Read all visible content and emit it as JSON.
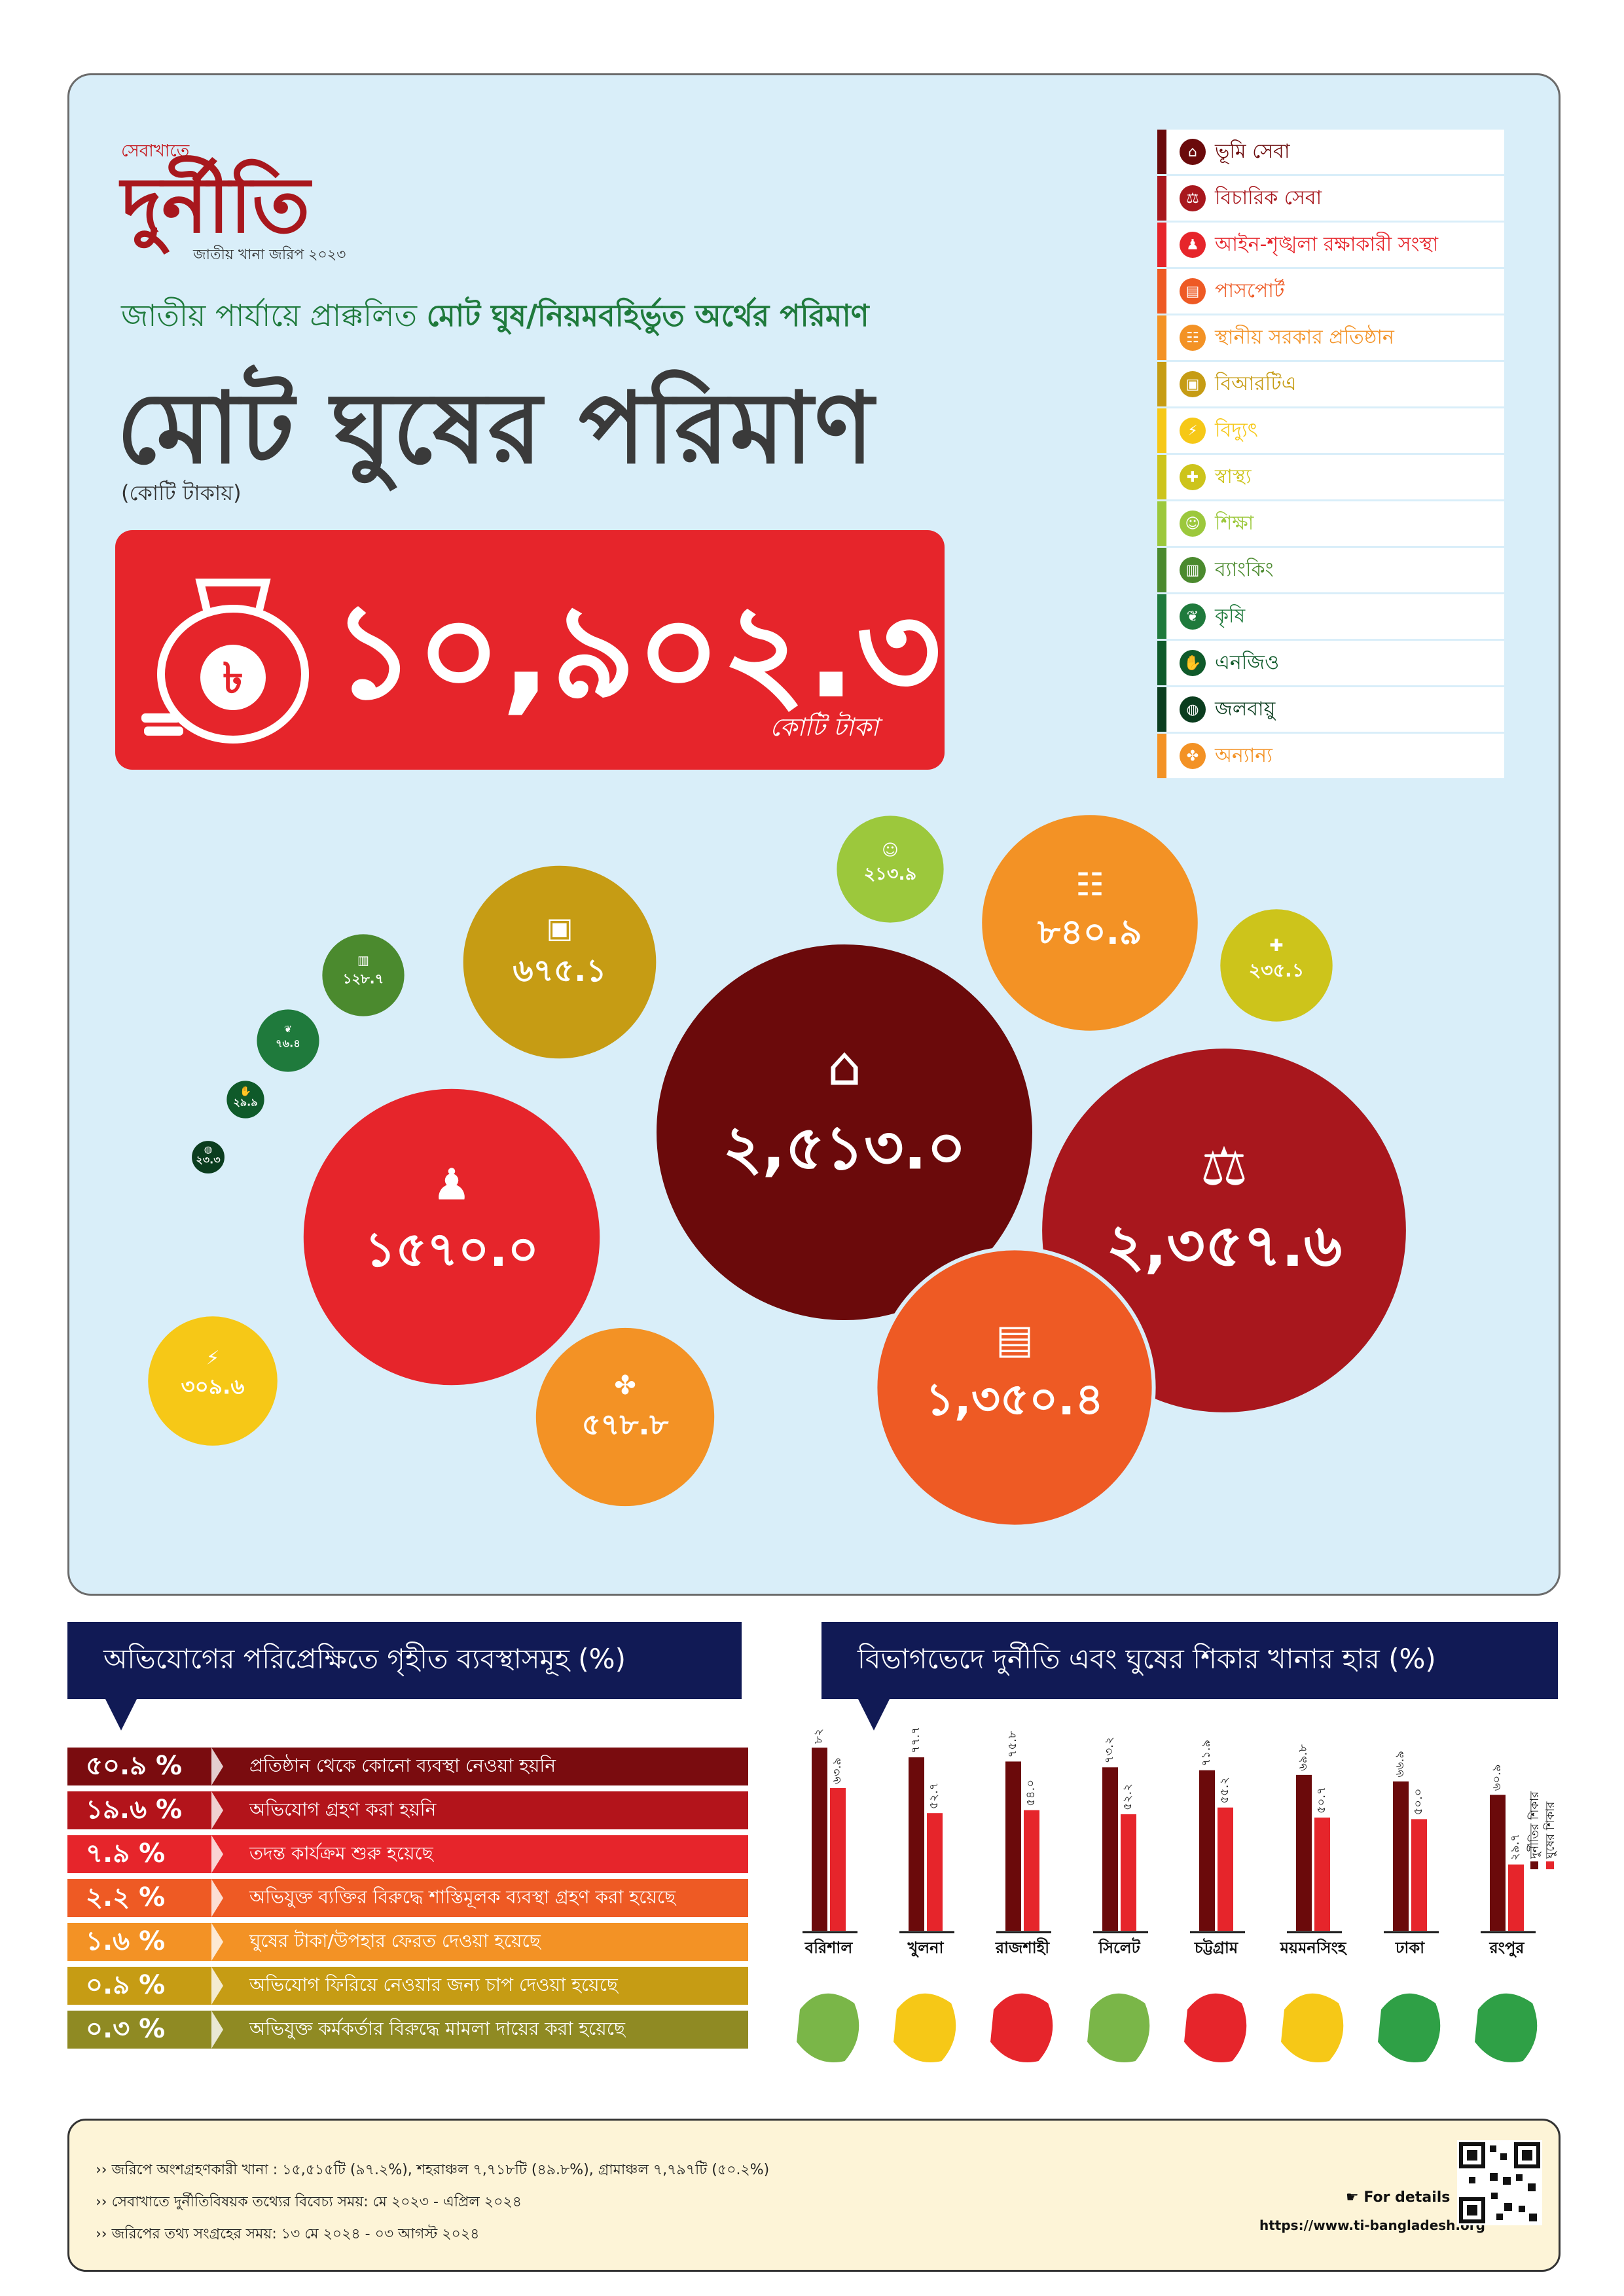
{
  "logo": {
    "top": "সেবাখাতে",
    "main": "দুর্নীতি",
    "sub": "জাতীয় খানা জরিপ ২০২৩"
  },
  "subtitle": {
    "pre": "জাতীয় পার্যায়ে প্রাক্কলিত ",
    "bold": "মোট ঘুষ/নিয়মবহির্ভুত অর্থের পরিমাণ"
  },
  "main_title": "মোট ঘুষের পরিমাণ",
  "unit": "(কোটি টাকায়)",
  "total": {
    "value": "১০,৯০২.৩",
    "unit": "কোটি টাকা",
    "icon": "taka-money-bag-icon"
  },
  "colors": {
    "panel": "#d9eef9",
    "header": "#111a55",
    "total_box": "#e6252b"
  },
  "legend": [
    {
      "label": "ভূমি সেবা",
      "color": "#6b0a0b",
      "icon": "land-icon"
    },
    {
      "label": "বিচারিক সেবা",
      "color": "#a8171d",
      "icon": "gavel-icon"
    },
    {
      "label": "আইন-শৃঙ্খলা রক্ষাকারী সংস্থা",
      "color": "#e6252b",
      "icon": "police-icon"
    },
    {
      "label": "পাসপোর্ট",
      "color": "#ee5a24",
      "icon": "passport-icon"
    },
    {
      "label": "স্থানীয় সরকার প্রতিষ্ঠান",
      "color": "#f39225",
      "icon": "meeting-icon"
    },
    {
      "label": "বিআরটিএ",
      "color": "#c69c14",
      "icon": "bus-icon"
    },
    {
      "label": "বিদ্যুৎ",
      "color": "#f6c817",
      "icon": "lightning-icon"
    },
    {
      "label": "স্বাস্থ্য",
      "color": "#cdc41b",
      "icon": "health-icon"
    },
    {
      "label": "শিক্ষা",
      "color": "#9cc83c",
      "icon": "education-icon"
    },
    {
      "label": "ব্যাংকিং",
      "color": "#4b8a2e",
      "icon": "bank-icon"
    },
    {
      "label": "কৃষি",
      "color": "#1f7a3c",
      "icon": "agriculture-icon"
    },
    {
      "label": "এনজিও",
      "color": "#0f5a2a",
      "icon": "ngo-icon"
    },
    {
      "label": "জলবায়ু",
      "color": "#0b3d1f",
      "icon": "globe-icon"
    },
    {
      "label": "অন্যান্য",
      "color": "#f39225",
      "icon": "others-icon"
    }
  ],
  "chart_data": [
    {
      "type": "bubble",
      "title": "মোট ঘুষের পরিমাণ",
      "unit": "কোটি টাকা",
      "categories": [
        "ভূমি সেবা",
        "বিচারিক সেবা",
        "আইন-শৃঙ্খলা রক্ষাকারী সংস্থা",
        "পাসপোর্ট",
        "স্থানীয় সরকার প্রতিষ্ঠান",
        "বিআরটিএ",
        "বিদ্যুৎ",
        "স্বাস্থ্য",
        "শিক্ষা",
        "ব্যাংকিং",
        "কৃষি",
        "এনজিও",
        "জলবায়ু",
        "অন্যান্য"
      ],
      "values": [
        2513.0,
        2357.6,
        1570.0,
        1350.4,
        840.9,
        675.1,
        309.6,
        235.1,
        213.9,
        128.7,
        76.4,
        29.9,
        23.3,
        578.8
      ],
      "labels": [
        "২,৫১৩.০",
        "২,৩৫৭.৬",
        "১৫৭০.০",
        "১,৩৫০.৪",
        "৮৪০.৯",
        "৬৭৫.১",
        "৩০৯.৬",
        "২৩৫.১",
        "২১৩.৯",
        "১২৮.৭",
        "৭৬.৪",
        "২৯.৯",
        "২৩.৩",
        "৫৭৮.৮"
      ]
    },
    {
      "type": "bar",
      "title": "বিভাগভেদে দুর্নীতি এবং ঘুষের শিকার খানার হার (%)",
      "categories": [
        "বরিশাল",
        "খুলনা",
        "রাজশাহী",
        "সিলেট",
        "চট্টগ্রাম",
        "ময়মনসিংহ",
        "ঢাকা",
        "রংপুর"
      ],
      "series": [
        {
          "name": "দুর্নীতির শিকার",
          "color": "#6b0a0b",
          "values": [
            82.0,
            77.7,
            75.8,
            73.2,
            71.9,
            69.8,
            66.9,
            60.9
          ],
          "labels": [
            "৮২.০",
            "৭৭.৭",
            "৭৫.৮",
            "৭৩.২",
            "৭১.৯",
            "৬৯.৮",
            "৬৬.৯",
            "৬০.৯"
          ]
        },
        {
          "name": "ঘুষের শিকার",
          "color": "#e6252b",
          "values": [
            63.9,
            52.7,
            54.0,
            52.2,
            55.2,
            50.7,
            50.0,
            29.7
          ],
          "labels": [
            "৬৩.৯",
            "৫২.৭",
            "৫৪.০",
            "৫২.২",
            "৫৫.২",
            "৫০.৭",
            "৫০.০",
            "২৯.৭"
          ]
        }
      ],
      "map_colors": [
        "#7ab648",
        "#f6c817",
        "#e6252b",
        "#7ab648",
        "#e6252b",
        "#f6c817",
        "#2fa046",
        "#2fa046"
      ]
    }
  ],
  "measures": {
    "title": "অভিযোগের পরিপ্রেক্ষিতে গৃহীত ব্যবস্থাসমূহ (%)",
    "rows": [
      {
        "value": "৫০.৯ %",
        "label": "প্রতিষ্ঠান থেকে কোনো ব্যবস্থা নেওয়া হয়নি",
        "color": "#7a0c0f"
      },
      {
        "value": "১৯.৬ %",
        "label": "অভিযোগ গ্রহণ করা হয়নি",
        "color": "#b3141b"
      },
      {
        "value": "৭.৯ %",
        "label": "তদন্ত কার্যক্রম শুরু হয়েছে",
        "color": "#e6252b"
      },
      {
        "value": "২.২ %",
        "label": "অভিযুক্ত ব্যক্তির বিরুদ্ধে শাস্তিমূলক ব্যবস্থা গ্রহণ করা হয়েছে",
        "color": "#ee5a24"
      },
      {
        "value": "১.৬ %",
        "label": "ঘুষের টাকা/উপহার ফেরত দেওয়া হয়েছে",
        "color": "#f39225"
      },
      {
        "value": "০.৯ %",
        "label": "অভিযোগ ফিরিয়ে নেওয়ার জন্য চাপ দেওয়া হয়েছে",
        "color": "#c69c14"
      },
      {
        "value": "০.৩ %",
        "label": "অভিযুক্ত কর্মকর্তার বিরুদ্ধে মামলা দায়ের করা হয়েছে",
        "color": "#8f8a23"
      }
    ]
  },
  "division_title": "বিভাগভেদে দুর্নীতি এবং ঘুষের শিকার খানার হার (%)",
  "footer": {
    "lines": [
      "›› জরিপে অংশগ্রহণকারী খানা : ১৫,৫১৫টি (৯৭.২%), শহরাঞ্চল ৭,৭১৮টি (৪৯.৮%), গ্রামাঞ্চল ৭,৭৯৭টি (৫০.২%)",
      "›› সেবাখাতে দুর্নীতিবিষয়ক তথ্যের বিবেচ্য সময়: মে ২০২৩ - এপ্রিল ২০২৪",
      "›› জরিপের তথ্য সংগ্রহের সময়: ১৩ মে ২০২৪ - ০৩ আগস্ট ২০২৪"
    ],
    "details_label": "For details",
    "url": "https://www.ti-bangladesh.org"
  }
}
